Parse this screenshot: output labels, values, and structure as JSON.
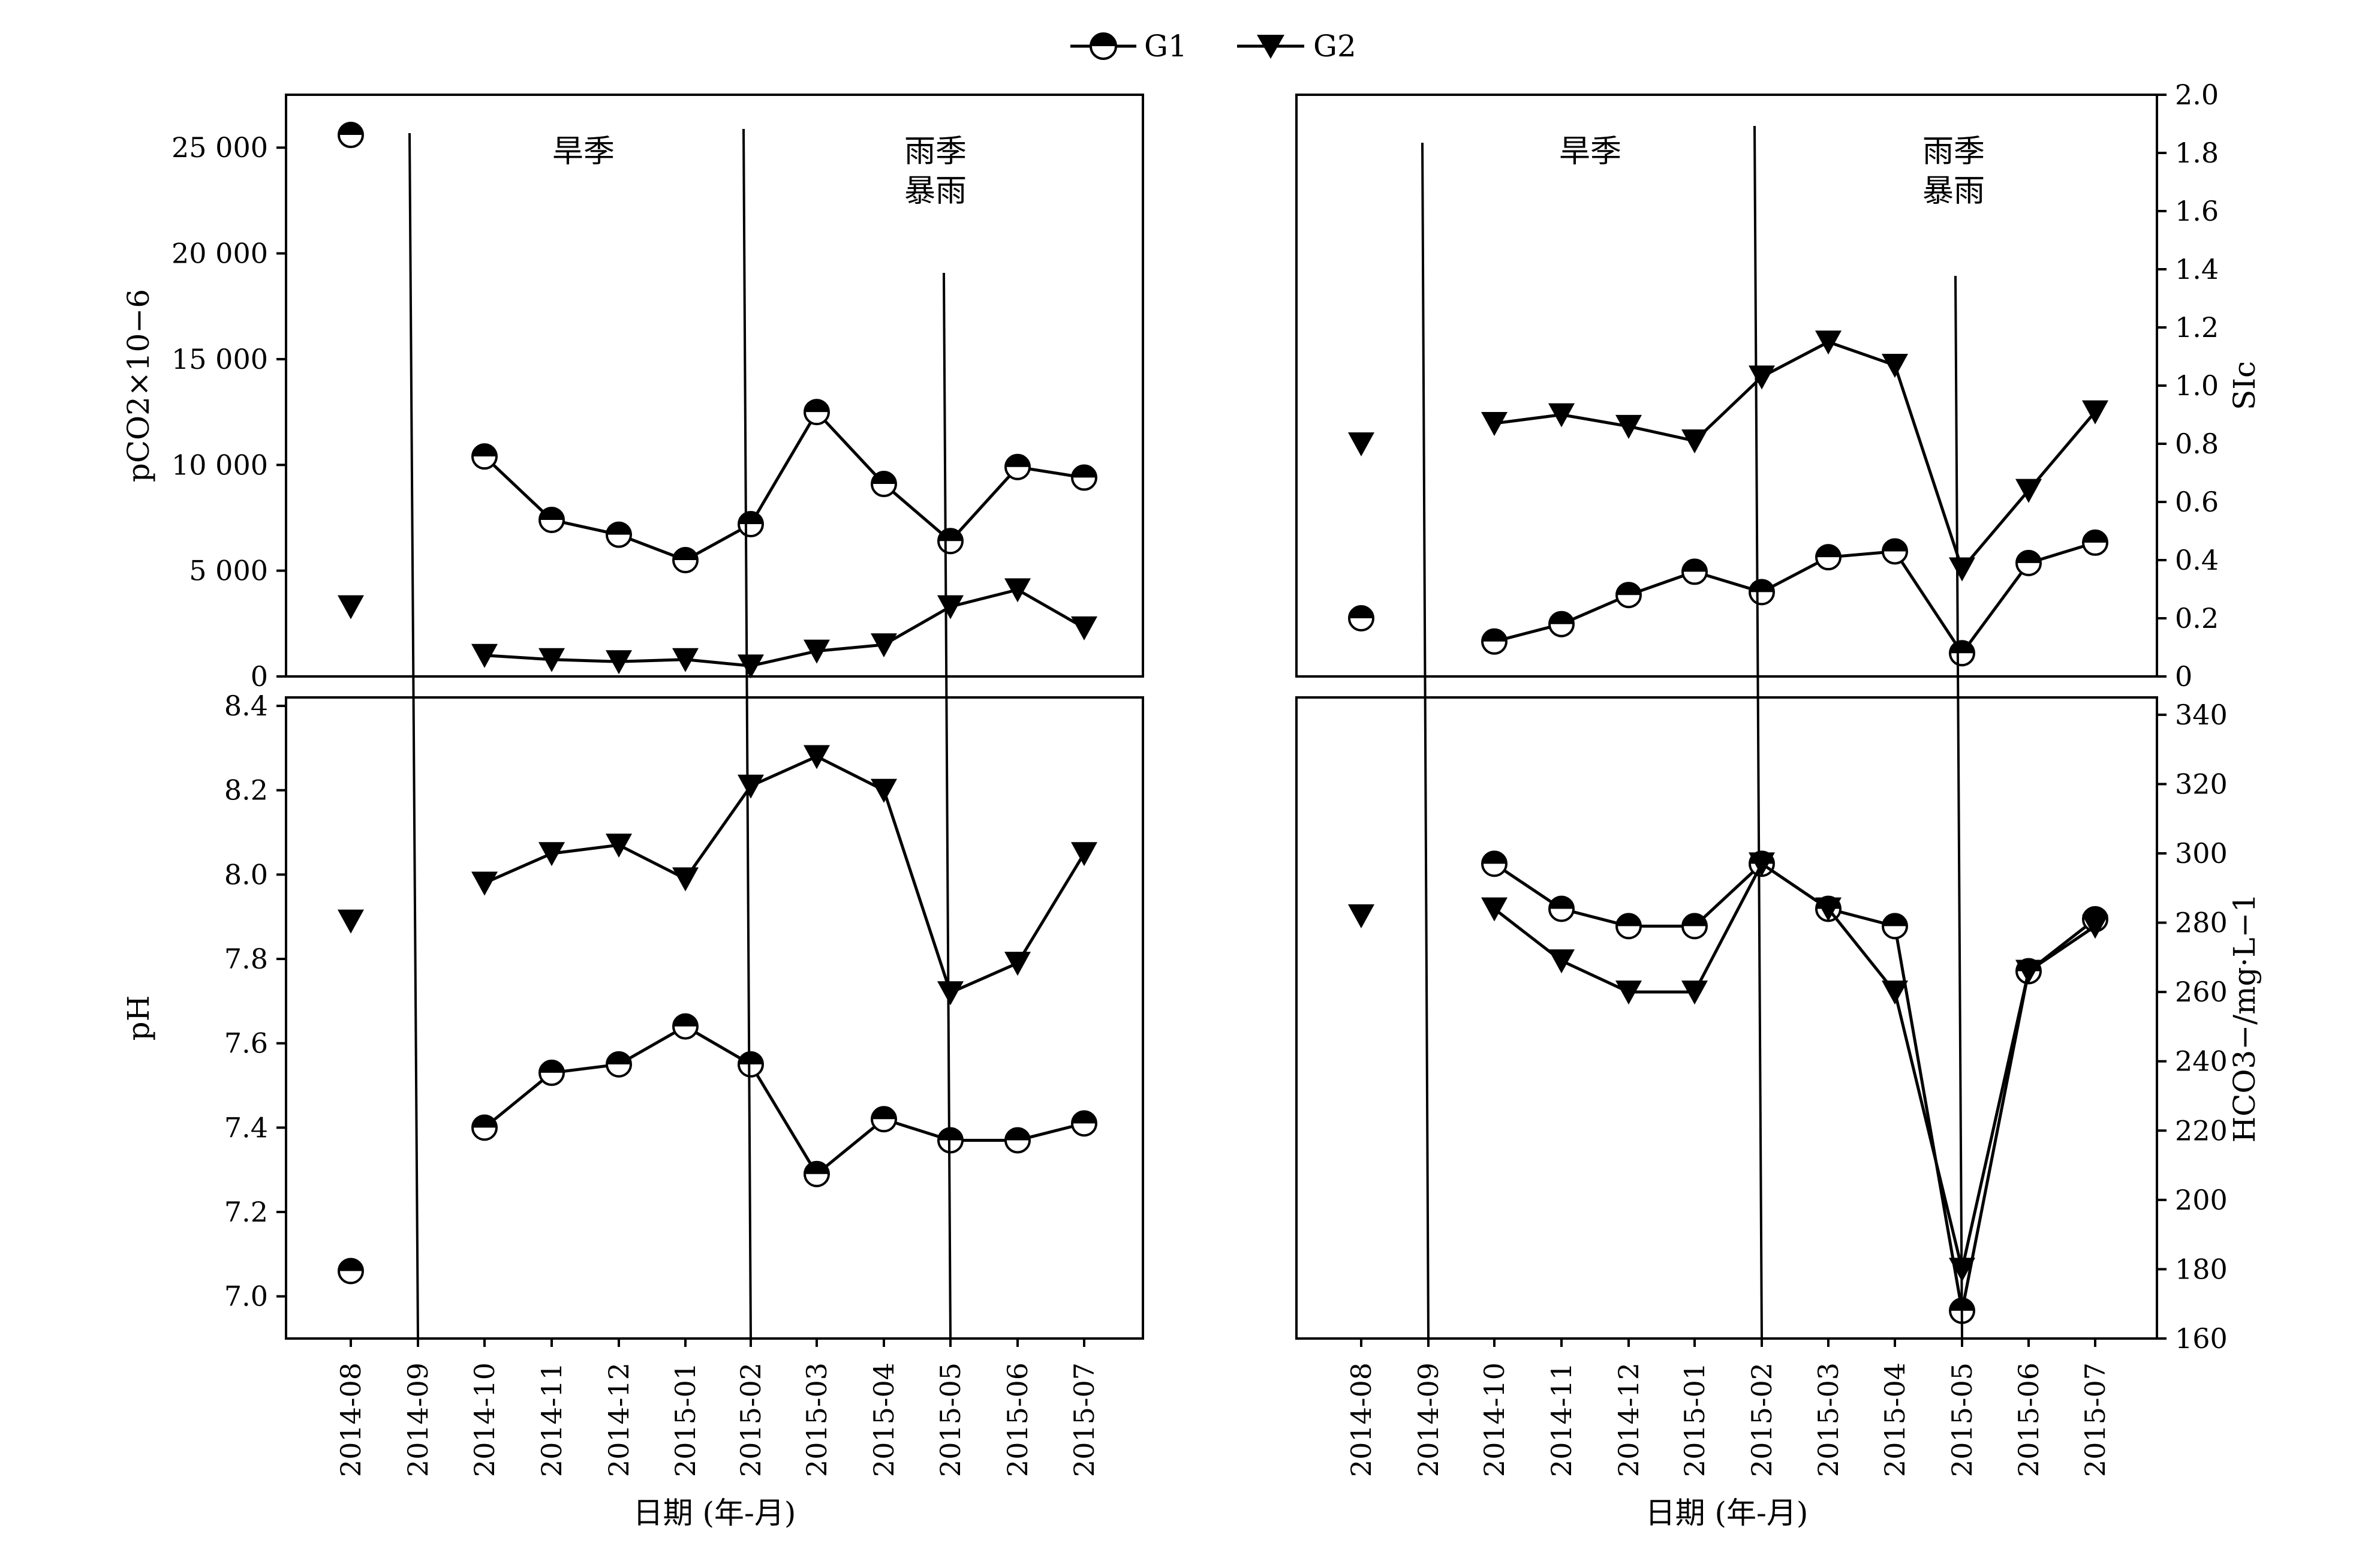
{
  "legend": {
    "items": [
      {
        "key": "G1",
        "label": "G1",
        "marker": "half-filled-circle"
      },
      {
        "key": "G2",
        "label": "G2",
        "marker": "filled-down-triangle"
      }
    ],
    "placement": "top-center"
  },
  "colors": {
    "ink": "#000000",
    "background": "#ffffff"
  },
  "periods": [
    {
      "label": "旱季",
      "lines": [
        "旱季"
      ]
    },
    {
      "label": "雨季 暴雨",
      "lines": [
        "雨季",
        "暴雨"
      ]
    }
  ],
  "chart_data": [
    {
      "type": "line",
      "id": "pco2",
      "panel": "top-left",
      "ylabel": "pCO2×10−6",
      "ylim": [
        0,
        27500
      ],
      "yticks": [
        0,
        5000,
        10000,
        15000,
        20000,
        25000
      ],
      "ytick_labels": [
        "0",
        "5 000",
        "10 000",
        "15 000",
        "20 000",
        "25 000"
      ],
      "x": [
        "2014-08",
        "2014-09",
        "2014-10",
        "2014-11",
        "2014-12",
        "2015-01",
        "2015-02",
        "2015-03",
        "2015-04",
        "2015-05",
        "2015-06",
        "2015-07"
      ],
      "series": [
        {
          "name": "G1",
          "values": [
            25600,
            null,
            10400,
            7400,
            6700,
            5500,
            7200,
            12500,
            9100,
            6400,
            9900,
            9400
          ]
        },
        {
          "name": "G2",
          "values": [
            3300,
            null,
            1000,
            800,
            700,
            800,
            500,
            1200,
            1500,
            3300,
            4100,
            2300
          ]
        }
      ]
    },
    {
      "type": "line",
      "id": "ph",
      "panel": "bottom-left",
      "ylabel": "pH",
      "xlabel": "日期 (年-月)",
      "ylim": [
        6.9,
        8.42
      ],
      "yticks": [
        7.0,
        7.2,
        7.4,
        7.6,
        7.8,
        8.0,
        8.2,
        8.4
      ],
      "ytick_labels": [
        "7.0",
        "7.2",
        "7.4",
        "7.6",
        "7.8",
        "8.0",
        "8.2",
        "8.4"
      ],
      "x": [
        "2014-08",
        "2014-09",
        "2014-10",
        "2014-11",
        "2014-12",
        "2015-01",
        "2015-02",
        "2015-03",
        "2015-04",
        "2015-05",
        "2015-06",
        "2015-07"
      ],
      "series": [
        {
          "name": "G1",
          "values": [
            7.06,
            null,
            7.4,
            7.53,
            7.55,
            7.64,
            7.55,
            7.29,
            7.42,
            7.37,
            7.37,
            7.41
          ]
        },
        {
          "name": "G2",
          "values": [
            7.89,
            null,
            7.98,
            8.05,
            8.07,
            7.99,
            8.21,
            8.28,
            8.2,
            7.72,
            7.79,
            8.05
          ]
        }
      ]
    },
    {
      "type": "line",
      "id": "sic",
      "panel": "top-right",
      "ylabel": "SIc",
      "ylim": [
        0,
        2.0
      ],
      "yticks": [
        0,
        0.2,
        0.4,
        0.6,
        0.8,
        1.0,
        1.2,
        1.4,
        1.6,
        1.8,
        2.0
      ],
      "ytick_labels": [
        "0",
        "0.2",
        "0.4",
        "0.6",
        "0.8",
        "1.0",
        "1.2",
        "1.4",
        "1.6",
        "1.8",
        "2.0"
      ],
      "x": [
        "2014-08",
        "2014-09",
        "2014-10",
        "2014-11",
        "2014-12",
        "2015-01",
        "2015-02",
        "2015-03",
        "2015-04",
        "2015-05",
        "2015-06",
        "2015-07"
      ],
      "series": [
        {
          "name": "G1",
          "values": [
            0.2,
            null,
            0.12,
            0.18,
            0.28,
            0.36,
            0.29,
            0.41,
            0.43,
            0.08,
            0.39,
            0.46
          ]
        },
        {
          "name": "G2",
          "values": [
            0.8,
            null,
            0.87,
            0.9,
            0.86,
            0.81,
            1.03,
            1.15,
            1.07,
            0.37,
            0.64,
            0.91
          ]
        }
      ]
    },
    {
      "type": "line",
      "id": "hco3",
      "panel": "bottom-right",
      "ylabel": "HCO3−/mg·L−1",
      "xlabel": "日期 (年-月)",
      "ylim": [
        160,
        345
      ],
      "yticks": [
        160,
        180,
        200,
        220,
        240,
        260,
        280,
        300,
        320,
        340
      ],
      "ytick_labels": [
        "160",
        "180",
        "200",
        "220",
        "240",
        "260",
        "280",
        "300",
        "320",
        "340"
      ],
      "x": [
        "2014-08",
        "2014-09",
        "2014-10",
        "2014-11",
        "2014-12",
        "2015-01",
        "2015-02",
        "2015-03",
        "2015-04",
        "2015-05",
        "2015-06",
        "2015-07"
      ],
      "series": [
        {
          "name": "G1",
          "values": [
            null,
            null,
            297,
            284,
            279,
            279,
            297,
            284,
            279,
            168,
            266,
            281
          ]
        },
        {
          "name": "G2",
          "values": [
            282,
            null,
            284,
            269,
            260,
            260,
            297,
            284,
            260,
            180,
            266,
            279
          ]
        }
      ]
    }
  ]
}
